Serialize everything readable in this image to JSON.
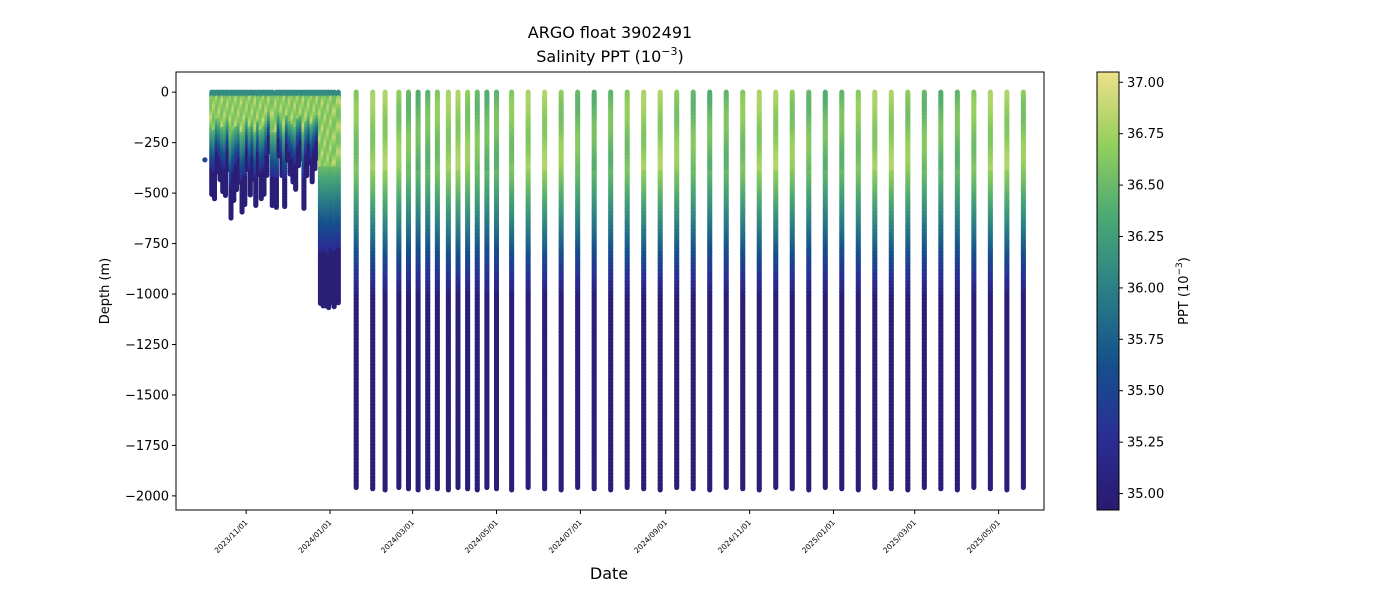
{
  "chart_data": {
    "type": "scatter",
    "title": "ARGO float 3902491",
    "subtitle_prefix": "Salinity PPT (10",
    "subtitle_exp": "−3",
    "subtitle_suffix": ")",
    "xlabel": "Date",
    "ylabel": "Depth (m)",
    "colorbar_label_prefix": "PPT (10",
    "colorbar_label_exp": "−3",
    "colorbar_label_suffix": ")",
    "colormap": "summer-like (dark blue → teal → green → pale yellow)",
    "colormap_stops": [
      "#2a1a6e",
      "#2a2e96",
      "#15508c",
      "#2a7e86",
      "#4aa874",
      "#93cf5c",
      "#eee089"
    ],
    "xlim": [
      "2023-09-11",
      "2025-06-03"
    ],
    "ylim": [
      -2070,
      100
    ],
    "clim": [
      34.92,
      37.05
    ],
    "yticks": [
      0,
      -250,
      -500,
      -750,
      -1000,
      -1250,
      -1500,
      -1750,
      -2000
    ],
    "ytick_labels": [
      "0",
      "−250",
      "−500",
      "−750",
      "−1000",
      "−1250",
      "−1500",
      "−1750",
      "−2000"
    ],
    "xticks": [
      "2023-11-01",
      "2024-01-01",
      "2024-03-01",
      "2024-05-01",
      "2024-07-01",
      "2024-09-01",
      "2024-11-01",
      "2025-01-01",
      "2025-03-01",
      "2025-05-01"
    ],
    "xtick_labels": [
      "2023/11/01",
      "2024/01/01",
      "2024/03/01",
      "2024/05/01",
      "2024/07/01",
      "2024/09/01",
      "2024/11/01",
      "2025/01/01",
      "2025/03/01",
      "2025/05/01"
    ],
    "cticks": [
      35.0,
      35.25,
      35.5,
      35.75,
      36.0,
      36.25,
      36.5,
      36.75,
      37.0
    ],
    "ctick_labels": [
      "35.00",
      "35.25",
      "35.50",
      "35.75",
      "36.00",
      "36.25",
      "36.50",
      "36.75",
      "37.00"
    ],
    "shallow_profiles": {
      "date_range": [
        "2023-10-07",
        "2024-01-07"
      ],
      "max_depth_range": [
        -1070,
        -330
      ],
      "surface_salinity": 36.1,
      "subsurface_max_salinity": 36.9,
      "deep_salinity": 35.0
    },
    "deep_profile_dates": [
      "2024-01-20",
      "2024-02-01",
      "2024-02-10",
      "2024-02-20",
      "2024-02-27",
      "2024-03-05",
      "2024-03-12",
      "2024-03-19",
      "2024-03-27",
      "2024-04-03",
      "2024-04-10",
      "2024-04-17",
      "2024-04-24",
      "2024-05-01",
      "2024-05-12",
      "2024-05-24",
      "2024-06-05",
      "2024-06-17",
      "2024-06-29",
      "2024-07-11",
      "2024-07-23",
      "2024-08-04",
      "2024-08-16",
      "2024-08-28",
      "2024-09-09",
      "2024-09-21",
      "2024-10-03",
      "2024-10-15",
      "2024-10-27",
      "2024-11-08",
      "2024-11-20",
      "2024-12-02",
      "2024-12-14",
      "2024-12-26",
      "2025-01-07",
      "2025-01-19",
      "2025-01-31",
      "2025-02-12",
      "2025-02-24",
      "2025-03-08",
      "2025-03-20",
      "2025-04-01",
      "2025-04-13",
      "2025-04-25",
      "2025-05-07",
      "2025-05-19"
    ],
    "deep_profile_max_depth": -1965,
    "deep_profile_surface_salinity": 36.6,
    "deep_profile_bottom_salinity": 34.98
  }
}
